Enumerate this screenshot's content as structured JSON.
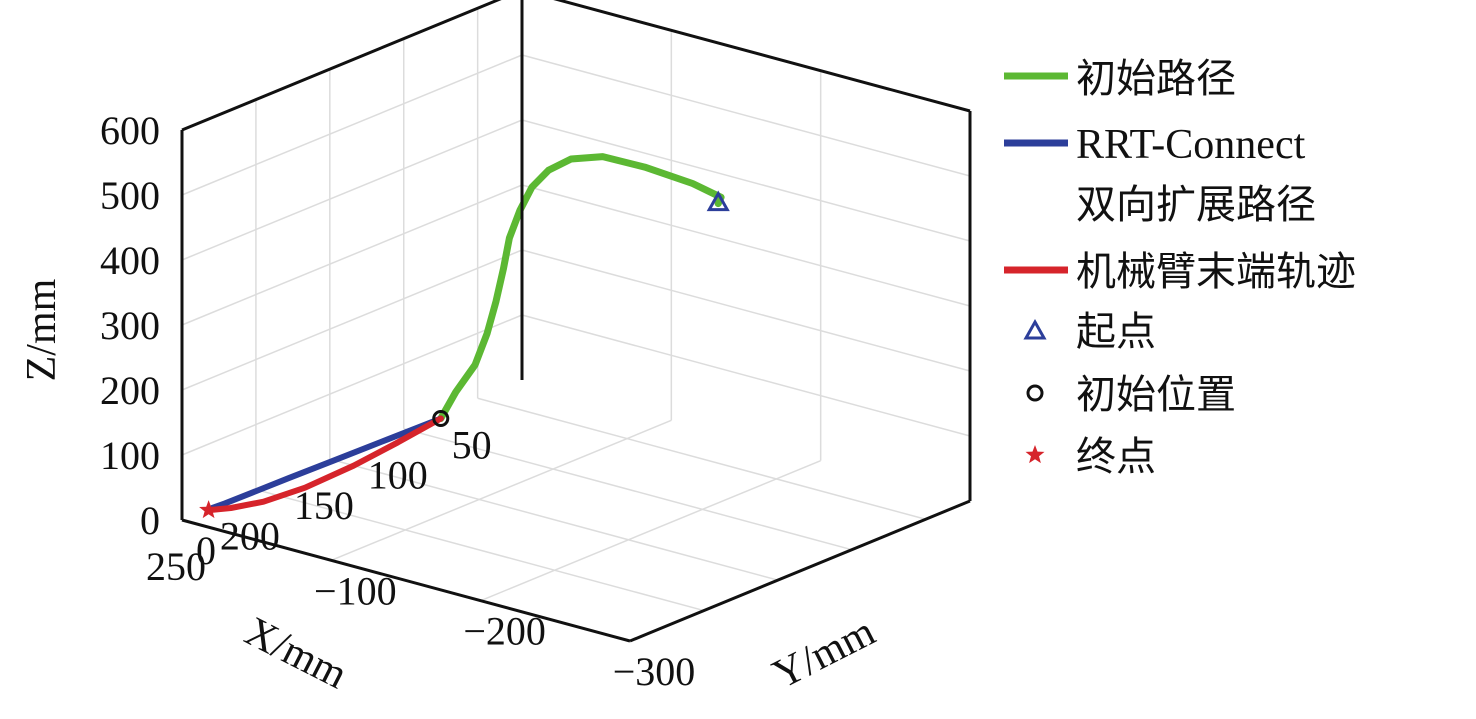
{
  "chart_data": {
    "type": "line3d",
    "xlabel": "X/mm",
    "ylabel": "Y/mm",
    "zlabel": "Z/mm",
    "xlim": [
      20,
      250
    ],
    "ylim": [
      0,
      -300
    ],
    "zlim": [
      0,
      600
    ],
    "x_ticks": [
      "250",
      "200",
      "150",
      "100",
      "50"
    ],
    "y_ticks": [
      "0",
      "−100",
      "−200",
      "−300"
    ],
    "z_ticks": [
      "0",
      "100",
      "200",
      "300",
      "400",
      "500",
      "600"
    ],
    "grid": true,
    "legend_position": "right",
    "colors": {
      "initial_path": "#5cb833",
      "rrt_connect": "#2c3e9a",
      "end_effector": "#d6242b",
      "start": "#2c3e9a",
      "initial_position": "#111111",
      "end": "#d6242b"
    },
    "series": [
      {
        "name": "初始路径",
        "points": [
          [
            80,
            -5,
            0
          ],
          [
            82,
            -17,
            50
          ],
          [
            82,
            -30,
            100
          ],
          [
            80,
            -36,
            150
          ],
          [
            78,
            -40,
            200
          ],
          [
            76,
            -43,
            250
          ],
          [
            76,
            -47,
            300
          ],
          [
            78,
            -56,
            350
          ],
          [
            84,
            -70,
            400
          ],
          [
            95,
            -92,
            450
          ],
          [
            110,
            -122,
            500
          ],
          [
            125,
            -158,
            540
          ],
          [
            137,
            -198,
            560
          ],
          [
            145,
            -238,
            567
          ],
          [
            153,
            -265,
            570
          ],
          [
            160,
            -270,
            570
          ]
        ]
      },
      {
        "name": "RRT-Connect 双向扩展路径",
        "points": [
          [
            80,
            -5,
            0
          ],
          [
            115,
            -4,
            0
          ],
          [
            150,
            -3,
            0
          ],
          [
            180,
            -2,
            0
          ],
          [
            205,
            -1.5,
            0
          ],
          [
            222,
            -1,
            0
          ],
          [
            230,
            -0.5,
            0
          ]
        ]
      },
      {
        "name": "机械臂末端轨迹",
        "points": [
          [
            80,
            -5,
            0
          ],
          [
            115,
            -11,
            0
          ],
          [
            150,
            -16,
            0
          ],
          [
            185,
            -18,
            0
          ],
          [
            210,
            -15,
            0
          ],
          [
            225,
            -8,
            0
          ],
          [
            232,
            -2,
            0
          ]
        ]
      }
    ],
    "markers": [
      {
        "name": "起点",
        "point": [
          160,
          -270,
          570
        ]
      },
      {
        "name": "初始位置",
        "point": [
          80,
          -5,
          0
        ]
      },
      {
        "name": "终点",
        "point": [
          233,
          -1,
          0
        ]
      }
    ]
  }
}
